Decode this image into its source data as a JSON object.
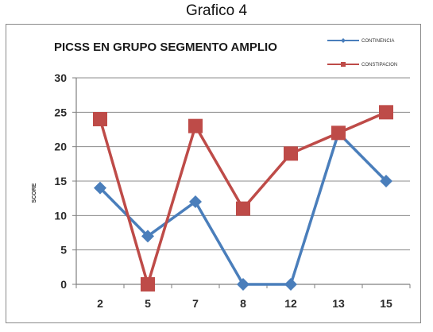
{
  "caption": "Grafico 4",
  "chart_data": {
    "type": "line",
    "title": "PICSS EN GRUPO SEGMENTO AMPLIO",
    "xlabel": "",
    "ylabel": "SCORE",
    "categories": [
      "2",
      "5",
      "7",
      "8",
      "12",
      "13",
      "15"
    ],
    "ylim": [
      0,
      30
    ],
    "yticks": [
      0,
      5,
      10,
      15,
      20,
      25,
      30
    ],
    "grid": "horizontal",
    "legend_position": "top-right",
    "series": [
      {
        "name": "CONTINENCIA",
        "values": [
          14,
          7,
          12,
          0,
          0,
          22,
          15
        ],
        "color": "#4a7ebb",
        "marker": "diamond"
      },
      {
        "name": "CONSTIPACION",
        "values": [
          24,
          0,
          23,
          11,
          19,
          22,
          25
        ],
        "color": "#be4b48",
        "marker": "square"
      }
    ]
  }
}
